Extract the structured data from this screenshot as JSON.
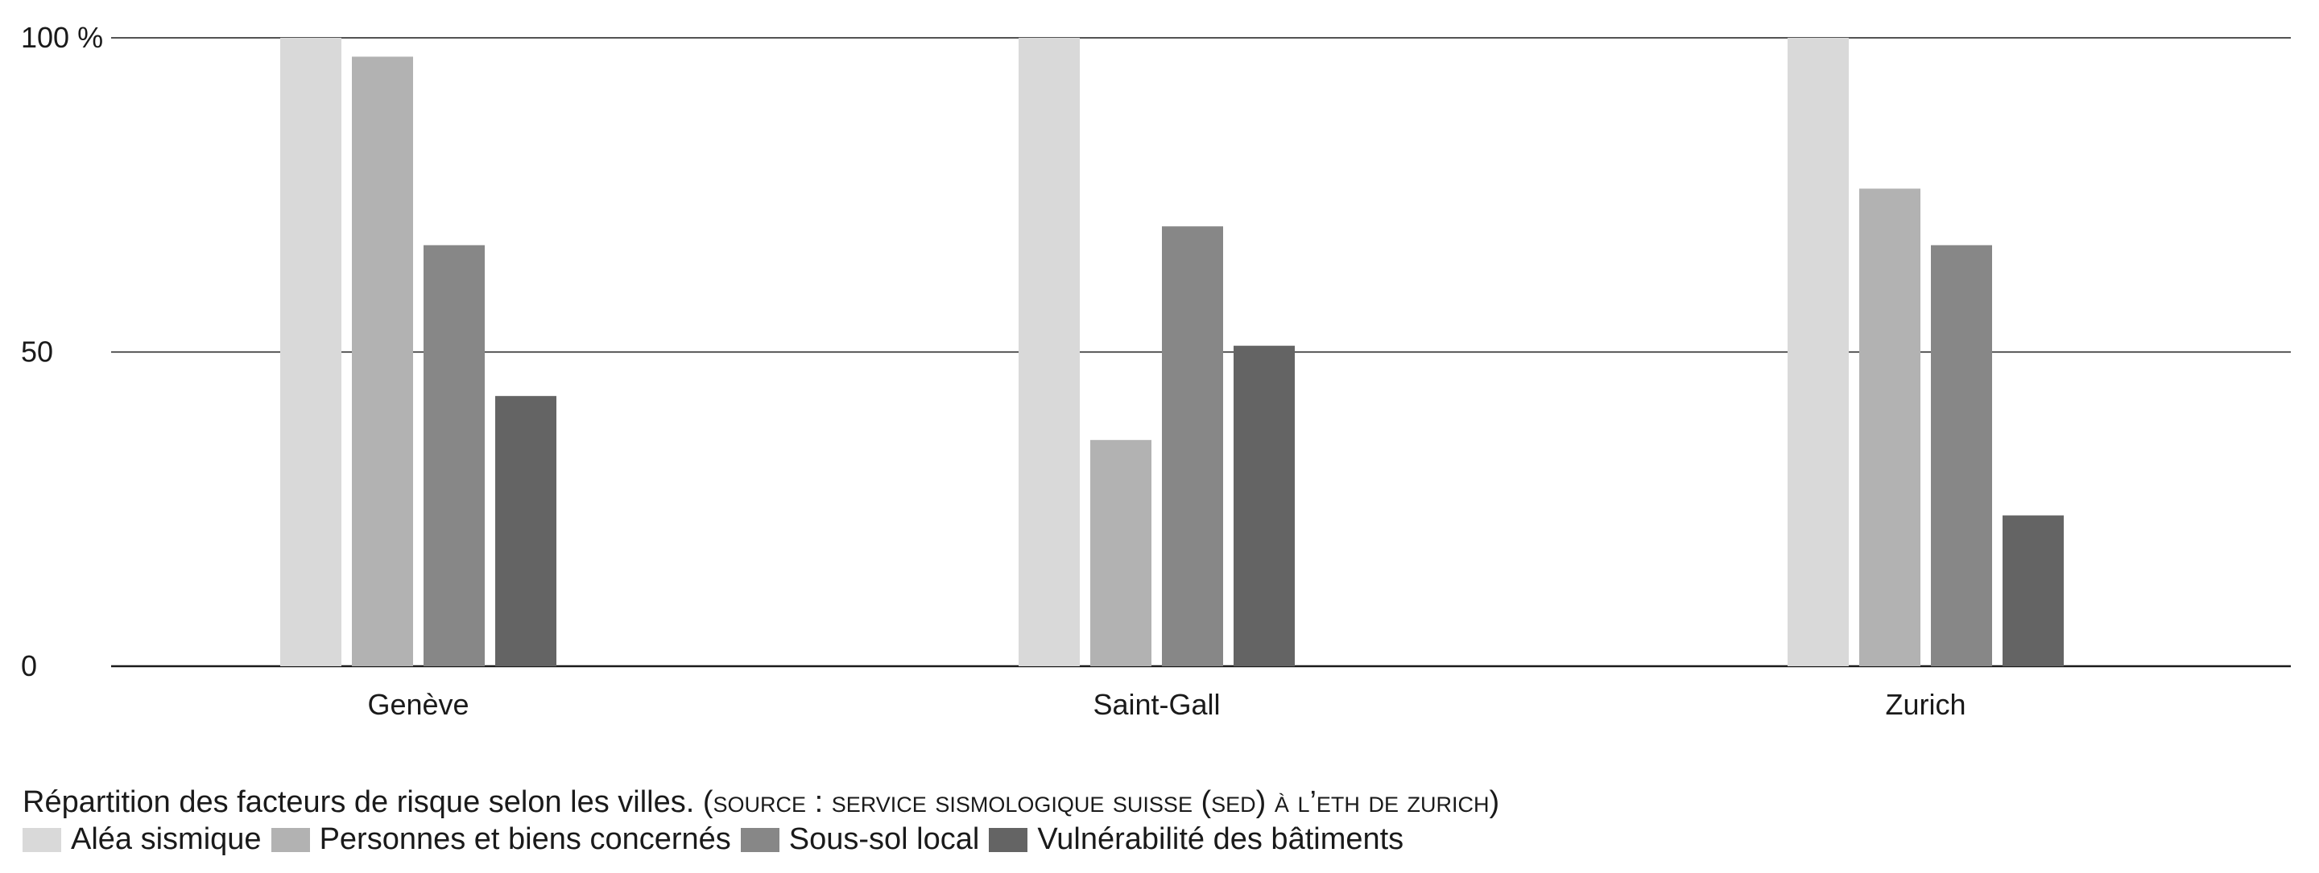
{
  "chart_data": {
    "type": "bar",
    "categories": [
      "Genève",
      "Saint-Gall",
      "Zurich"
    ],
    "series": [
      {
        "name": "Aléa sismique",
        "color": "#d9d9d9",
        "values": [
          100,
          100,
          100
        ]
      },
      {
        "name": "Personnes et biens concernés",
        "color": "#b2b2b2",
        "values": [
          97,
          36,
          76
        ]
      },
      {
        "name": "Sous-sol local",
        "color": "#878787",
        "values": [
          67,
          70,
          67
        ]
      },
      {
        "name": "Vulnérabilité des bâtiments",
        "color": "#646464",
        "values": [
          43,
          51,
          24
        ]
      }
    ],
    "ylim": [
      0,
      100
    ],
    "yticks": [
      {
        "value": 0,
        "label": "0"
      },
      {
        "value": 50,
        "label": "50"
      },
      {
        "value": 100,
        "label": "100 %"
      }
    ],
    "grid": true,
    "legend": "bottom-left",
    "caption_main": "Répartition des facteurs de risque selon les villes.",
    "caption_source": "(source : service sismologique suisse (sed) à l’eth de zurich)"
  }
}
